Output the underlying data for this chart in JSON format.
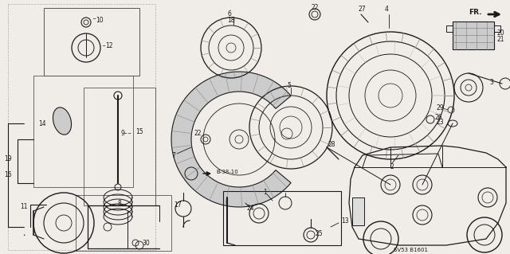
{
  "bg_color": "#f0ede8",
  "line_color": "#1a1a1a",
  "watermark": "SV53 B1601",
  "fig_width": 6.4,
  "fig_height": 3.19,
  "dpi": 100,
  "img_bg": "#f0ede8"
}
